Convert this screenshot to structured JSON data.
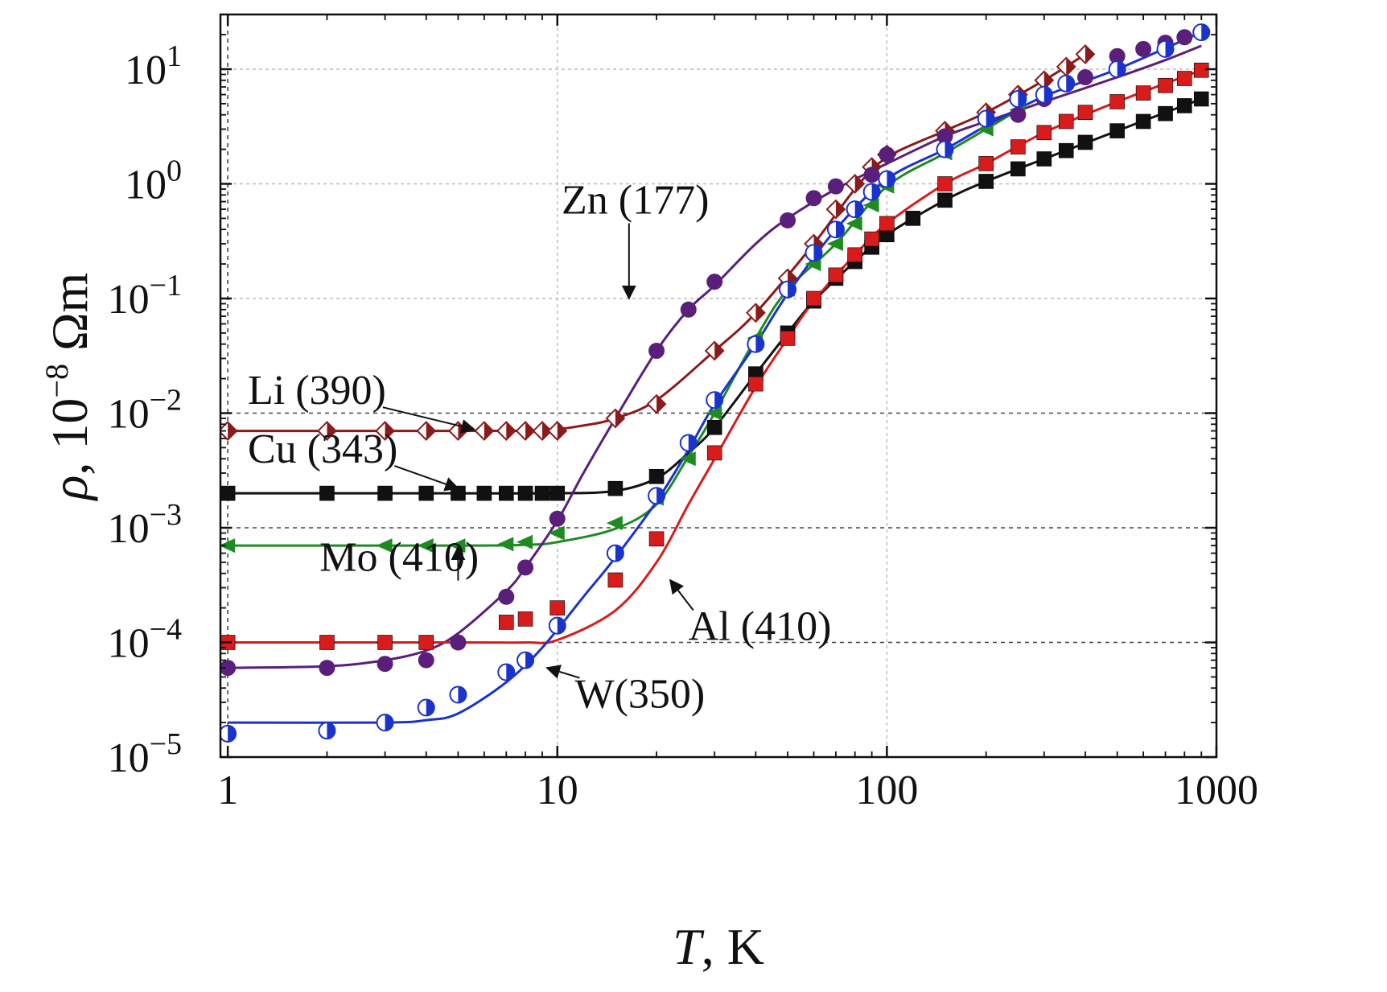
{
  "chart_data": {
    "type": "scatter",
    "xscale": "log",
    "yscale": "log",
    "xlim": [
      0.95,
      1000
    ],
    "ylim": [
      1e-05,
      30
    ],
    "xlabel": {
      "var": "T",
      "rest": ", K"
    },
    "ylabel": {
      "var": "ρ",
      "rest": ", 10",
      "sup": "−8",
      "unit": " Ωm"
    },
    "x_ticks": [
      {
        "value": 1,
        "label": "1"
      },
      {
        "value": 10,
        "label": "10"
      },
      {
        "value": 100,
        "label": "100"
      },
      {
        "value": 1000,
        "label": "1000"
      }
    ],
    "y_ticks": [
      {
        "value": 1e-05,
        "base": "10",
        "exp": "−5"
      },
      {
        "value": 0.0001,
        "base": "10",
        "exp": "−4"
      },
      {
        "value": 0.001,
        "base": "10",
        "exp": "−3"
      },
      {
        "value": 0.01,
        "base": "10",
        "exp": "−2"
      },
      {
        "value": 0.1,
        "base": "10",
        "exp": "−1"
      },
      {
        "value": 1,
        "base": "10",
        "exp": "0"
      },
      {
        "value": 10,
        "base": "10",
        "exp": "1"
      }
    ],
    "grid": true,
    "series": [
      {
        "name": "Li (390)",
        "color": "#8b1a1a",
        "marker": "half-diamond",
        "points": [
          [
            1,
            0.007
          ],
          [
            2,
            0.007
          ],
          [
            3,
            0.007
          ],
          [
            4,
            0.007
          ],
          [
            5,
            0.007
          ],
          [
            6,
            0.007
          ],
          [
            7,
            0.007
          ],
          [
            8,
            0.007
          ],
          [
            9,
            0.007
          ],
          [
            10,
            0.007
          ],
          [
            15,
            0.009
          ],
          [
            20,
            0.012
          ],
          [
            30,
            0.035
          ],
          [
            40,
            0.075
          ],
          [
            50,
            0.15
          ],
          [
            60,
            0.3
          ],
          [
            70,
            0.6
          ],
          [
            80,
            1.0
          ],
          [
            90,
            1.4
          ],
          [
            100,
            1.8
          ],
          [
            150,
            2.9
          ],
          [
            200,
            4.2
          ],
          [
            250,
            6.0
          ],
          [
            300,
            8.0
          ],
          [
            350,
            10.5
          ],
          [
            400,
            13.5
          ]
        ],
        "fit": [
          [
            1,
            0.007
          ],
          [
            5,
            0.007
          ],
          [
            9,
            0.0071
          ],
          [
            12,
            0.0078
          ],
          [
            15,
            0.009
          ],
          [
            20,
            0.013
          ],
          [
            30,
            0.035
          ],
          [
            40,
            0.075
          ],
          [
            60,
            0.3
          ],
          [
            80,
            0.9
          ],
          [
            100,
            1.7
          ],
          [
            150,
            2.9
          ],
          [
            200,
            4.2
          ],
          [
            300,
            8.0
          ],
          [
            400,
            13.5
          ]
        ],
        "label_anchor": [
          1.15,
          0.012
        ],
        "arrow_to": [
          5.6,
          0.0072
        ]
      },
      {
        "name": "Cu (343)",
        "color": "#111111",
        "marker": "square",
        "points": [
          [
            1,
            0.002
          ],
          [
            2,
            0.002
          ],
          [
            3,
            0.002
          ],
          [
            4,
            0.002
          ],
          [
            5,
            0.002
          ],
          [
            6,
            0.002
          ],
          [
            7,
            0.002
          ],
          [
            8,
            0.002
          ],
          [
            9,
            0.002
          ],
          [
            10,
            0.002
          ],
          [
            15,
            0.0022
          ],
          [
            20,
            0.0028
          ],
          [
            30,
            0.0075
          ],
          [
            40,
            0.022
          ],
          [
            50,
            0.05
          ],
          [
            60,
            0.095
          ],
          [
            70,
            0.15
          ],
          [
            80,
            0.21
          ],
          [
            90,
            0.28
          ],
          [
            100,
            0.36
          ],
          [
            120,
            0.5
          ],
          [
            150,
            0.72
          ],
          [
            200,
            1.05
          ],
          [
            250,
            1.35
          ],
          [
            300,
            1.65
          ],
          [
            350,
            1.95
          ],
          [
            400,
            2.3
          ],
          [
            500,
            2.9
          ],
          [
            600,
            3.5
          ],
          [
            700,
            4.1
          ],
          [
            800,
            4.8
          ],
          [
            900,
            5.5
          ]
        ],
        "fit": [
          [
            1,
            0.002
          ],
          [
            5,
            0.002
          ],
          [
            10,
            0.002
          ],
          [
            15,
            0.0021
          ],
          [
            20,
            0.0027
          ],
          [
            25,
            0.0045
          ],
          [
            30,
            0.0075
          ],
          [
            40,
            0.022
          ],
          [
            50,
            0.05
          ],
          [
            60,
            0.095
          ],
          [
            80,
            0.21
          ],
          [
            100,
            0.36
          ],
          [
            150,
            0.72
          ],
          [
            200,
            1.05
          ],
          [
            300,
            1.65
          ],
          [
            500,
            2.9
          ],
          [
            900,
            5.5
          ]
        ],
        "label_anchor": [
          1.15,
          0.0037
        ],
        "arrow_to": [
          5.0,
          0.0022
        ]
      },
      {
        "name": "Mo (410)",
        "color": "#1e8a22",
        "marker": "triangle-left",
        "points": [
          [
            1,
            0.0007
          ],
          [
            3,
            0.0007
          ],
          [
            4,
            0.0007
          ],
          [
            5,
            0.0007
          ],
          [
            7,
            0.00072
          ],
          [
            8,
            0.00075
          ],
          [
            10,
            0.0009
          ],
          [
            15,
            0.0011
          ],
          [
            20,
            0.0018
          ],
          [
            25,
            0.004
          ],
          [
            30,
            0.01
          ],
          [
            40,
            0.045
          ],
          [
            50,
            0.12
          ],
          [
            60,
            0.2
          ],
          [
            70,
            0.3
          ],
          [
            80,
            0.45
          ],
          [
            90,
            0.65
          ],
          [
            100,
            0.95
          ],
          [
            150,
            1.85
          ],
          [
            200,
            3.0
          ],
          [
            250,
            4.4
          ]
        ],
        "fit": [
          [
            1,
            0.0007
          ],
          [
            5,
            0.0007
          ],
          [
            8,
            0.00071
          ],
          [
            10,
            0.00075
          ],
          [
            15,
            0.00098
          ],
          [
            20,
            0.0016
          ],
          [
            25,
            0.0042
          ],
          [
            30,
            0.01
          ],
          [
            40,
            0.045
          ],
          [
            50,
            0.12
          ],
          [
            70,
            0.3
          ],
          [
            100,
            0.95
          ],
          [
            150,
            1.85
          ],
          [
            200,
            3.0
          ],
          [
            250,
            4.4
          ]
        ],
        "label_anchor": [
          1.9,
          0.00042
        ],
        "arrow_to": [
          5.0,
          0.00068
        ]
      },
      {
        "name": "Zn (177)",
        "color": "#5a1f7a",
        "marker": "circle",
        "points": [
          [
            1,
            6e-05
          ],
          [
            2,
            6e-05
          ],
          [
            3,
            6.5e-05
          ],
          [
            4,
            7e-05
          ],
          [
            5,
            0.0001
          ],
          [
            7,
            0.00025
          ],
          [
            8,
            0.00045
          ],
          [
            10,
            0.0012
          ],
          [
            20,
            0.035
          ],
          [
            25,
            0.08
          ],
          [
            30,
            0.14
          ],
          [
            50,
            0.48
          ],
          [
            60,
            0.75
          ],
          [
            70,
            0.95
          ],
          [
            90,
            1.2
          ],
          [
            100,
            1.8
          ],
          [
            150,
            2.6
          ],
          [
            250,
            4.0
          ],
          [
            300,
            5.5
          ],
          [
            400,
            8.5
          ],
          [
            500,
            13
          ],
          [
            600,
            15
          ],
          [
            700,
            17
          ],
          [
            800,
            19
          ]
        ],
        "fit": [
          [
            1,
            6e-05
          ],
          [
            2,
            6.2e-05
          ],
          [
            3,
            7e-05
          ],
          [
            4,
            8.5e-05
          ],
          [
            5,
            0.00012
          ],
          [
            7,
            0.00028
          ],
          [
            8,
            0.00045
          ],
          [
            10,
            0.00115
          ],
          [
            12,
            0.003
          ],
          [
            15,
            0.009
          ],
          [
            20,
            0.035
          ],
          [
            25,
            0.08
          ],
          [
            30,
            0.13
          ],
          [
            40,
            0.3
          ],
          [
            50,
            0.5
          ],
          [
            70,
            0.9
          ],
          [
            100,
            1.5
          ],
          [
            150,
            2.6
          ],
          [
            200,
            3.5
          ],
          [
            300,
            5.2
          ],
          [
            500,
            8.5
          ],
          [
            700,
            12
          ],
          [
            900,
            16
          ]
        ],
        "label_anchor": [
          10.3,
          0.55
        ],
        "arrow_to": [
          16.5,
          0.1
        ]
      },
      {
        "name": "Al (410)",
        "color": "#d81c1c",
        "marker": "square",
        "points": [
          [
            1,
            0.0001
          ],
          [
            2,
            0.0001
          ],
          [
            3,
            0.0001
          ],
          [
            4,
            0.0001
          ],
          [
            7,
            0.00015
          ],
          [
            8,
            0.00016
          ],
          [
            10,
            0.0002
          ],
          [
            15,
            0.00035
          ],
          [
            20,
            0.0008
          ],
          [
            30,
            0.0045
          ],
          [
            40,
            0.018
          ],
          [
            50,
            0.045
          ],
          [
            60,
            0.1
          ],
          [
            70,
            0.16
          ],
          [
            80,
            0.24
          ],
          [
            90,
            0.33
          ],
          [
            100,
            0.45
          ],
          [
            150,
            1.0
          ],
          [
            200,
            1.5
          ],
          [
            250,
            2.1
          ],
          [
            300,
            2.8
          ],
          [
            350,
            3.5
          ],
          [
            400,
            4.2
          ],
          [
            500,
            5.2
          ],
          [
            600,
            6.2
          ],
          [
            700,
            7.2
          ],
          [
            800,
            8.3
          ],
          [
            900,
            9.8
          ]
        ],
        "fit": [
          [
            1,
            0.0001
          ],
          [
            5,
            0.0001
          ],
          [
            8,
            0.0001
          ],
          [
            10,
            0.000105
          ],
          [
            15,
            0.00019
          ],
          [
            20,
            0.0005
          ],
          [
            25,
            0.0016
          ],
          [
            30,
            0.004
          ],
          [
            40,
            0.017
          ],
          [
            50,
            0.045
          ],
          [
            60,
            0.095
          ],
          [
            80,
            0.24
          ],
          [
            100,
            0.45
          ],
          [
            150,
            1.0
          ],
          [
            200,
            1.5
          ],
          [
            300,
            2.8
          ],
          [
            500,
            5.2
          ],
          [
            900,
            9.8
          ]
        ],
        "label_anchor": [
          25,
          0.000105
        ],
        "arrow_to": [
          22,
          0.00035
        ]
      },
      {
        "name": "W(350)",
        "color": "#1a33cc",
        "marker": "half-circle",
        "points": [
          [
            1,
            1.6e-05
          ],
          [
            2,
            1.7e-05
          ],
          [
            3,
            2e-05
          ],
          [
            4,
            2.7e-05
          ],
          [
            5,
            3.5e-05
          ],
          [
            7,
            5.5e-05
          ],
          [
            8,
            7e-05
          ],
          [
            10,
            0.00014
          ],
          [
            15,
            0.0006
          ],
          [
            20,
            0.0019
          ],
          [
            25,
            0.0055
          ],
          [
            30,
            0.013
          ],
          [
            40,
            0.04
          ],
          [
            50,
            0.12
          ],
          [
            60,
            0.25
          ],
          [
            70,
            0.4
          ],
          [
            80,
            0.6
          ],
          [
            90,
            0.85
          ],
          [
            100,
            1.1
          ],
          [
            150,
            2.0
          ],
          [
            200,
            3.7
          ],
          [
            250,
            5.5
          ],
          [
            300,
            6.0
          ],
          [
            350,
            7.5
          ],
          [
            500,
            10
          ],
          [
            700,
            15
          ],
          [
            900,
            21
          ]
        ],
        "fit": [
          [
            1,
            2e-05
          ],
          [
            3,
            2e-05
          ],
          [
            4,
            2.1e-05
          ],
          [
            5,
            2.4e-05
          ],
          [
            7,
            4.5e-05
          ],
          [
            9,
            9e-05
          ],
          [
            12,
            0.00025
          ],
          [
            15,
            0.00055
          ],
          [
            20,
            0.0017
          ],
          [
            25,
            0.0048
          ],
          [
            30,
            0.012
          ],
          [
            40,
            0.04
          ],
          [
            50,
            0.11
          ],
          [
            70,
            0.4
          ],
          [
            100,
            1.1
          ],
          [
            150,
            2.0
          ],
          [
            200,
            3.2
          ],
          [
            300,
            5.8
          ],
          [
            500,
            10
          ],
          [
            900,
            21
          ]
        ],
        "label_anchor": [
          11.3,
          2.7e-05
        ],
        "arrow_to": [
          9.3,
          6e-05
        ]
      }
    ]
  }
}
